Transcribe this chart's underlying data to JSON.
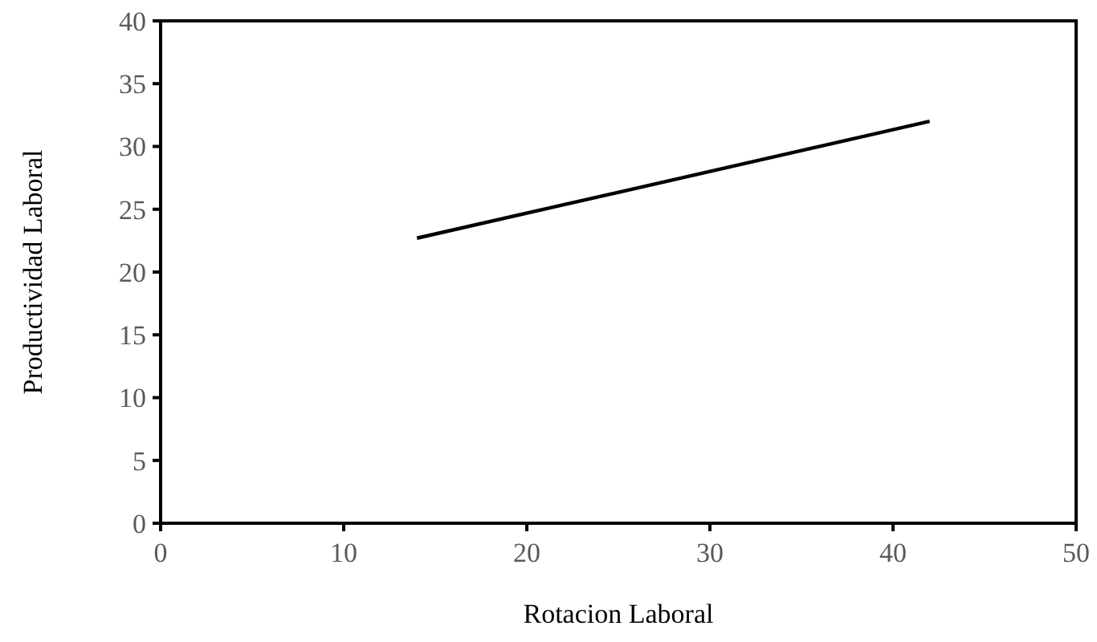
{
  "chart_data": {
    "type": "line",
    "xlabel": "Rotacion Laboral",
    "ylabel": "Productividad Laboral",
    "x": [
      14,
      42
    ],
    "series": [
      {
        "color": "#000000",
        "values": [
          22.7,
          32
        ]
      }
    ],
    "xlim": [
      0,
      50
    ],
    "xticks": [
      0,
      10,
      20,
      30,
      40,
      50
    ],
    "ylim": [
      0,
      40
    ],
    "yticks": [
      0,
      5,
      10,
      15,
      20,
      25,
      30,
      35,
      40
    ],
    "grid": false,
    "marker": "none",
    "line_style": "solid"
  }
}
